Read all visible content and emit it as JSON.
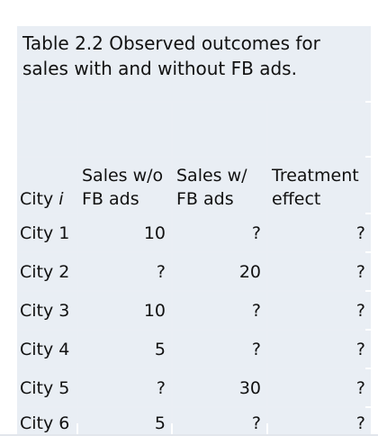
{
  "table": {
    "caption": "Table 2.2 Observed outcomes for sales with and without FB ads.",
    "headers": {
      "city_prefix": "City",
      "city_var": "i",
      "sales_without": "Sales w/o FB ads",
      "sales_with": "Sales w/ FB ads",
      "treatment_effect": "Treatment effect"
    },
    "rows": [
      {
        "city": "City 1",
        "without": "10",
        "with": "?",
        "effect": "?"
      },
      {
        "city": "City 2",
        "without": "?",
        "with": "20",
        "effect": "?"
      },
      {
        "city": "City 3",
        "without": "10",
        "with": "?",
        "effect": "?"
      },
      {
        "city": "City 4",
        "without": "5",
        "with": "?",
        "effect": "?"
      },
      {
        "city": "City 5",
        "without": "?",
        "with": "30",
        "effect": "?"
      },
      {
        "city": "City 6",
        "without": "5",
        "with": "?",
        "effect": "?"
      }
    ]
  }
}
